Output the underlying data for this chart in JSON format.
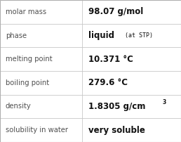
{
  "rows": [
    {
      "label": "molar mass",
      "value": "98.07 g/mol",
      "superscript": null,
      "small_suffix": null
    },
    {
      "label": "phase",
      "value": "liquid",
      "superscript": null,
      "small_suffix": "(at STP)"
    },
    {
      "label": "melting point",
      "value": "10.371 °C",
      "superscript": null,
      "small_suffix": null
    },
    {
      "label": "boiling point",
      "value": "279.6 °C",
      "superscript": null,
      "small_suffix": null
    },
    {
      "label": "density",
      "value": "1.8305 g/cm",
      "superscript": "3",
      "small_suffix": null
    },
    {
      "label": "solubility in water",
      "value": "very soluble",
      "superscript": null,
      "small_suffix": null
    }
  ],
  "bg_color": "#ffffff",
  "border_color": "#b0b0b0",
  "label_color": "#505050",
  "value_color": "#111111",
  "divider_color": "#c8c8c8",
  "col_split": 0.455,
  "label_fontsize": 7.2,
  "value_fontsize": 8.5,
  "small_suffix_fontsize": 6.0,
  "superscript_fontsize": 5.5,
  "font_family": "DejaVu Sans"
}
